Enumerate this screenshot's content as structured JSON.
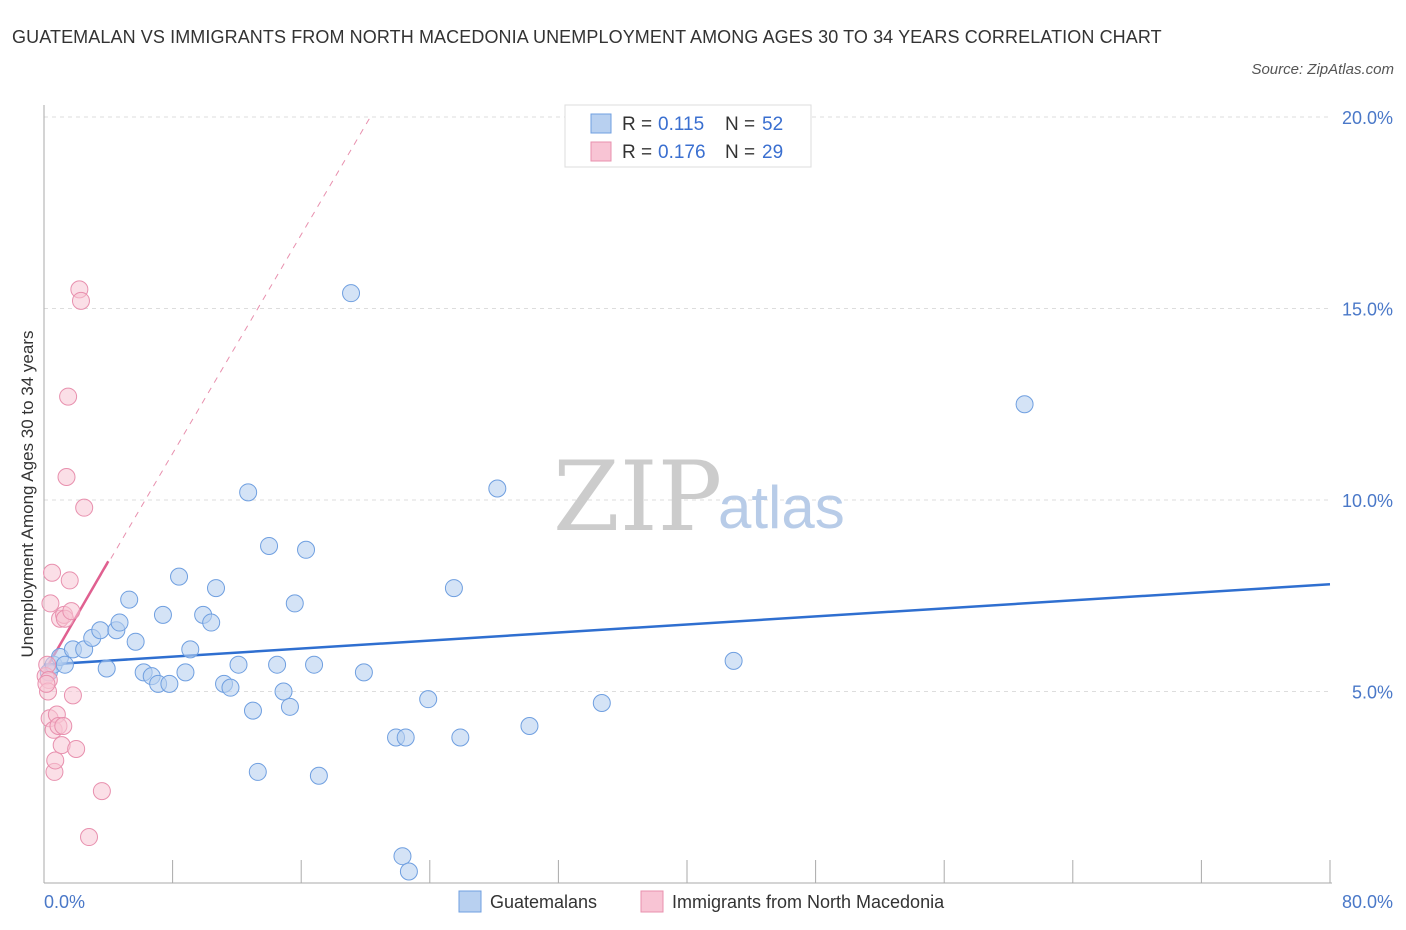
{
  "title": "GUATEMALAN VS IMMIGRANTS FROM NORTH MACEDONIA UNEMPLOYMENT AMONG AGES 30 TO 34 YEARS CORRELATION CHART",
  "source": "Source: ZipAtlas.com",
  "watermark": {
    "zip": "ZIP",
    "atlas": "atlas"
  },
  "colors": {
    "blue_fill": "#b8d0f0",
    "blue_stroke": "#6f9fe0",
    "blue_line": "#2f6fd0",
    "pink_fill": "#f8c4d4",
    "pink_stroke": "#e890ae",
    "pink_line": "#e06090",
    "grid": "#dddddd",
    "tick_text": "#4a78c8"
  },
  "legend": [
    {
      "r_label": "R = ",
      "r_value": "0.115",
      "n_label": "N = ",
      "n_value": "52"
    },
    {
      "r_label": "R = ",
      "r_value": "0.176",
      "n_label": "N = ",
      "n_value": "29"
    }
  ],
  "bottom_legend": [
    "Guatemalans",
    "Immigrants from North Macedonia"
  ],
  "chart_data": {
    "type": "scatter",
    "title": "GUATEMALAN VS IMMIGRANTS FROM NORTH MACEDONIA UNEMPLOYMENT AMONG AGES 30 TO 34 YEARS CORRELATION CHART",
    "xlabel": "",
    "ylabel": "Unemployment Among Ages 30 to 34 years",
    "xlim": [
      0,
      80
    ],
    "ylim": [
      0,
      20
    ],
    "x_tick_labels": [
      "0.0%",
      "80.0%"
    ],
    "y_ticks": [
      5,
      10,
      15,
      20
    ],
    "y_tick_labels": [
      "5.0%",
      "10.0%",
      "15.0%",
      "20.0%"
    ],
    "grid": true,
    "legend_position": "top-center",
    "series": [
      {
        "name": "Guatemalans",
        "color": "blue",
        "R": 0.115,
        "N": 52,
        "trend": {
          "x": [
            0,
            80
          ],
          "y": [
            5.7,
            7.8
          ]
        },
        "points": [
          [
            0.3,
            5.5
          ],
          [
            0.6,
            5.7
          ],
          [
            1.0,
            5.9
          ],
          [
            1.3,
            5.7
          ],
          [
            1.8,
            6.1
          ],
          [
            2.5,
            6.1
          ],
          [
            3.0,
            6.4
          ],
          [
            3.5,
            6.6
          ],
          [
            3.9,
            5.6
          ],
          [
            4.5,
            6.6
          ],
          [
            4.7,
            6.8
          ],
          [
            5.3,
            7.4
          ],
          [
            5.7,
            6.3
          ],
          [
            6.2,
            5.5
          ],
          [
            6.7,
            5.4
          ],
          [
            7.1,
            5.2
          ],
          [
            7.4,
            7.0
          ],
          [
            7.8,
            5.2
          ],
          [
            8.4,
            8.0
          ],
          [
            8.8,
            5.5
          ],
          [
            9.1,
            6.1
          ],
          [
            9.9,
            7.0
          ],
          [
            10.4,
            6.8
          ],
          [
            10.7,
            7.7
          ],
          [
            11.2,
            5.2
          ],
          [
            11.6,
            5.1
          ],
          [
            12.1,
            5.7
          ],
          [
            12.7,
            10.2
          ],
          [
            13.0,
            4.5
          ],
          [
            13.3,
            2.9
          ],
          [
            14.0,
            8.8
          ],
          [
            14.5,
            5.7
          ],
          [
            14.9,
            5.0
          ],
          [
            15.3,
            4.6
          ],
          [
            15.6,
            7.3
          ],
          [
            16.3,
            8.7
          ],
          [
            16.8,
            5.7
          ],
          [
            17.1,
            2.8
          ],
          [
            19.1,
            15.4
          ],
          [
            19.9,
            5.5
          ],
          [
            21.9,
            3.8
          ],
          [
            22.3,
            0.7
          ],
          [
            22.5,
            3.8
          ],
          [
            22.7,
            0.3
          ],
          [
            23.9,
            4.8
          ],
          [
            25.5,
            7.7
          ],
          [
            25.9,
            3.8
          ],
          [
            28.2,
            10.3
          ],
          [
            30.2,
            4.1
          ],
          [
            34.7,
            4.7
          ],
          [
            42.9,
            5.8
          ],
          [
            61.0,
            12.5
          ]
        ]
      },
      {
        "name": "Immigrants from North Macedonia",
        "color": "pink",
        "R": 0.176,
        "N": 29,
        "trend": {
          "x": [
            0,
            4
          ],
          "y": [
            5.5,
            8.4
          ]
        },
        "trend_extended": {
          "x": [
            0,
            20.3
          ],
          "y": [
            5.5,
            20.0
          ]
        },
        "points": [
          [
            0.1,
            5.4
          ],
          [
            0.2,
            5.7
          ],
          [
            0.3,
            5.3
          ],
          [
            0.35,
            4.3
          ],
          [
            0.4,
            7.3
          ],
          [
            0.5,
            8.1
          ],
          [
            0.6,
            4.0
          ],
          [
            0.65,
            2.9
          ],
          [
            0.7,
            3.2
          ],
          [
            0.8,
            4.4
          ],
          [
            0.9,
            4.1
          ],
          [
            1.0,
            6.9
          ],
          [
            1.1,
            3.6
          ],
          [
            1.2,
            4.1
          ],
          [
            1.25,
            7.0
          ],
          [
            1.3,
            6.9
          ],
          [
            1.4,
            10.6
          ],
          [
            1.5,
            12.7
          ],
          [
            1.6,
            7.9
          ],
          [
            1.7,
            7.1
          ],
          [
            1.8,
            4.9
          ],
          [
            2.0,
            3.5
          ],
          [
            2.2,
            15.5
          ],
          [
            2.3,
            15.2
          ],
          [
            2.5,
            9.8
          ],
          [
            2.8,
            1.2
          ],
          [
            3.6,
            2.4
          ],
          [
            0.25,
            5.0
          ],
          [
            0.15,
            5.2
          ]
        ]
      }
    ]
  }
}
